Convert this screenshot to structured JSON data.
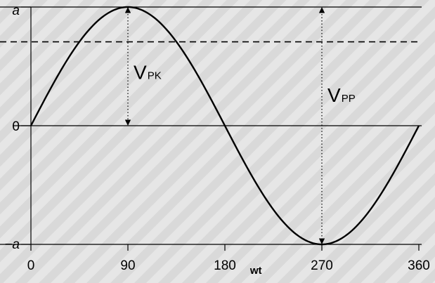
{
  "chart_data": {
    "type": "line",
    "x": [
      0,
      15,
      30,
      45,
      60,
      75,
      90,
      105,
      120,
      135,
      150,
      165,
      180,
      195,
      210,
      225,
      240,
      255,
      270,
      285,
      300,
      315,
      330,
      345,
      360
    ],
    "y": [
      0,
      0.259,
      0.5,
      0.707,
      0.866,
      0.966,
      1,
      0.966,
      0.866,
      0.707,
      0.5,
      0.259,
      0,
      -0.259,
      -0.5,
      -0.707,
      -0.866,
      -0.966,
      -1,
      -0.966,
      -0.866,
      -0.707,
      -0.5,
      -0.259,
      0
    ],
    "xlim": [
      0,
      360
    ],
    "ylim": [
      -1,
      1
    ],
    "xlabel": "wt",
    "x_ticks": [
      {
        "value": 0,
        "label": "0"
      },
      {
        "value": 90,
        "label": "90"
      },
      {
        "value": 180,
        "label": "180"
      },
      {
        "value": 270,
        "label": "270"
      },
      {
        "value": 360,
        "label": "360"
      }
    ],
    "y_ticks": [
      {
        "value": 1,
        "label": "a"
      },
      {
        "value": 0,
        "label": "0"
      },
      {
        "value": -1,
        "label": "−a"
      }
    ],
    "reference_lines": [
      {
        "axis": "y",
        "value": 1,
        "style": "solid"
      },
      {
        "axis": "y",
        "value": 0.707,
        "style": "dashed"
      },
      {
        "axis": "y",
        "value": 0,
        "style": "solid"
      },
      {
        "axis": "y",
        "value": -1,
        "style": "solid"
      }
    ],
    "annotations": [
      {
        "main": "V",
        "sub": "PK",
        "x": 90,
        "from": 0,
        "to": 1
      },
      {
        "main": "V",
        "sub": "PP",
        "x": 270,
        "from": -1,
        "to": 1
      }
    ],
    "grid": false,
    "line_color": "#000000"
  }
}
